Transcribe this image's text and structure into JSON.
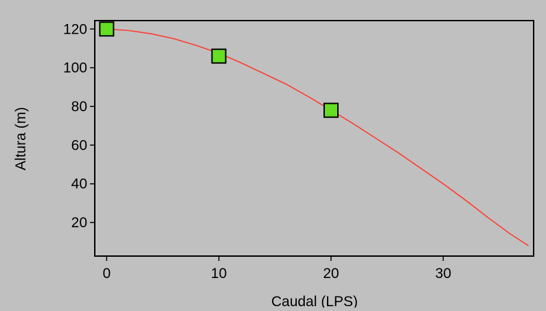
{
  "chart_data": {
    "type": "line",
    "title": "",
    "xlabel": "Caudal (LPS)",
    "ylabel": "Altura (m)",
    "xlim": [
      -1,
      38
    ],
    "ylim": [
      3,
      124
    ],
    "xticks": [
      0,
      10,
      20,
      30
    ],
    "yticks": [
      20,
      40,
      60,
      80,
      100,
      120
    ],
    "grid": false,
    "legend": "none",
    "series": [
      {
        "kind": "curve",
        "color": "#ff3b30",
        "x": [
          0,
          2,
          4,
          6,
          8,
          10,
          12,
          14,
          16,
          18,
          20,
          22,
          24,
          26,
          28,
          30,
          32,
          34,
          36,
          37.6
        ],
        "y": [
          120,
          119.2,
          117.5,
          115,
          111.5,
          107.5,
          102.5,
          97,
          91.5,
          85,
          78,
          71,
          63.5,
          56,
          48,
          40,
          31.5,
          22.5,
          14,
          8
        ]
      },
      {
        "kind": "points",
        "color": "#66dd22",
        "x": [
          0,
          10,
          20
        ],
        "y": [
          120,
          106,
          78
        ]
      }
    ]
  }
}
